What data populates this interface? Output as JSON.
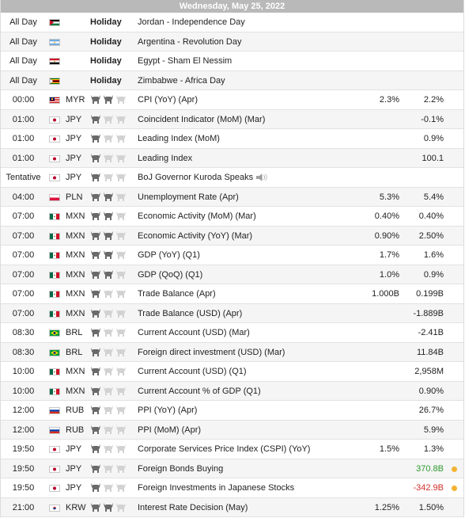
{
  "header": {
    "date": "Wednesday, May 25, 2022"
  },
  "colors": {
    "bull_active": "#6a6a6a",
    "bull_inactive": "#d2d2d2",
    "positive": "#2e9b2e",
    "negative": "#d0302b",
    "dot": "#f2b233"
  },
  "rows": [
    {
      "time": "All Day",
      "flag": "jordan",
      "currency": "",
      "holiday_label": "Holiday",
      "event": "Jordan - Independence Day"
    },
    {
      "time": "All Day",
      "flag": "argentina",
      "currency": "",
      "holiday_label": "Holiday",
      "event": "Argentina - Revolution Day"
    },
    {
      "time": "All Day",
      "flag": "egypt",
      "currency": "",
      "holiday_label": "Holiday",
      "event": "Egypt - Sham El Nessim"
    },
    {
      "time": "All Day",
      "flag": "zimbabwe",
      "currency": "",
      "holiday_label": "Holiday",
      "event": "Zimbabwe - Africa Day"
    },
    {
      "time": "00:00",
      "flag": "malaysia",
      "currency": "MYR",
      "importance": 2,
      "event": "CPI (YoY) (Apr)",
      "forecast": "2.3%",
      "previous": "2.2%"
    },
    {
      "time": "01:00",
      "flag": "japan",
      "currency": "JPY",
      "importance": 1,
      "event": "Coincident Indicator (MoM) (Mar)",
      "forecast": "",
      "previous": "-0.1%"
    },
    {
      "time": "01:00",
      "flag": "japan",
      "currency": "JPY",
      "importance": 1,
      "event": "Leading Index (MoM)",
      "forecast": "",
      "previous": "0.9%"
    },
    {
      "time": "01:00",
      "flag": "japan",
      "currency": "JPY",
      "importance": 1,
      "event": "Leading Index",
      "forecast": "",
      "previous": "100.1"
    },
    {
      "time": "Tentative",
      "flag": "japan",
      "currency": "JPY",
      "importance": 1,
      "event": "BoJ Governor Kuroda Speaks",
      "speech": true,
      "forecast": "",
      "previous": ""
    },
    {
      "time": "04:00",
      "flag": "poland",
      "currency": "PLN",
      "importance": 2,
      "event": "Unemployment Rate (Apr)",
      "forecast": "5.3%",
      "previous": "5.4%"
    },
    {
      "time": "07:00",
      "flag": "mexico",
      "currency": "MXN",
      "importance": 2,
      "event": "Economic Activity (MoM) (Mar)",
      "forecast": "0.40%",
      "previous": "0.40%"
    },
    {
      "time": "07:00",
      "flag": "mexico",
      "currency": "MXN",
      "importance": 2,
      "event": "Economic Activity (YoY) (Mar)",
      "forecast": "0.90%",
      "previous": "2.50%"
    },
    {
      "time": "07:00",
      "flag": "mexico",
      "currency": "MXN",
      "importance": 2,
      "event": "GDP (YoY) (Q1)",
      "forecast": "1.7%",
      "previous": "1.6%"
    },
    {
      "time": "07:00",
      "flag": "mexico",
      "currency": "MXN",
      "importance": 2,
      "event": "GDP (QoQ) (Q1)",
      "forecast": "1.0%",
      "previous": "0.9%"
    },
    {
      "time": "07:00",
      "flag": "mexico",
      "currency": "MXN",
      "importance": 1,
      "event": "Trade Balance (Apr)",
      "forecast": "1.000B",
      "previous": "0.199B"
    },
    {
      "time": "07:00",
      "flag": "mexico",
      "currency": "MXN",
      "importance": 1,
      "event": "Trade Balance (USD) (Apr)",
      "forecast": "",
      "previous": "-1.889B"
    },
    {
      "time": "08:30",
      "flag": "brazil",
      "currency": "BRL",
      "importance": 1,
      "event": "Current Account (USD) (Mar)",
      "forecast": "",
      "previous": "-2.41B"
    },
    {
      "time": "08:30",
      "flag": "brazil",
      "currency": "BRL",
      "importance": 1,
      "event": "Foreign direct investment (USD) (Mar)",
      "forecast": "",
      "previous": "11.84B"
    },
    {
      "time": "10:00",
      "flag": "mexico",
      "currency": "MXN",
      "importance": 1,
      "event": "Current Account (USD) (Q1)",
      "forecast": "",
      "previous": "2,958M"
    },
    {
      "time": "10:00",
      "flag": "mexico",
      "currency": "MXN",
      "importance": 1,
      "event": "Current Account % of GDP (Q1)",
      "forecast": "",
      "previous": "0.90%"
    },
    {
      "time": "12:00",
      "flag": "russia",
      "currency": "RUB",
      "importance": 1,
      "event": "PPI (YoY) (Apr)",
      "forecast": "",
      "previous": "26.7%"
    },
    {
      "time": "12:00",
      "flag": "russia",
      "currency": "RUB",
      "importance": 1,
      "event": "PPI (MoM) (Apr)",
      "forecast": "",
      "previous": "5.9%"
    },
    {
      "time": "19:50",
      "flag": "japan",
      "currency": "JPY",
      "importance": 1,
      "event": "Corporate Services Price Index (CSPI) (YoY)",
      "forecast": "1.5%",
      "previous": "1.3%"
    },
    {
      "time": "19:50",
      "flag": "japan",
      "currency": "JPY",
      "importance": 1,
      "event": "Foreign Bonds Buying",
      "forecast": "",
      "previous": "370.8B",
      "previous_tone": "positive",
      "dot": true
    },
    {
      "time": "19:50",
      "flag": "japan",
      "currency": "JPY",
      "importance": 1,
      "event": "Foreign Investments in Japanese Stocks",
      "forecast": "",
      "previous": "-342.9B",
      "previous_tone": "negative",
      "dot": true
    },
    {
      "time": "21:00",
      "flag": "korea",
      "currency": "KRW",
      "importance": 2,
      "event": "Interest Rate Decision (May)",
      "forecast": "1.25%",
      "previous": "1.50%"
    }
  ]
}
